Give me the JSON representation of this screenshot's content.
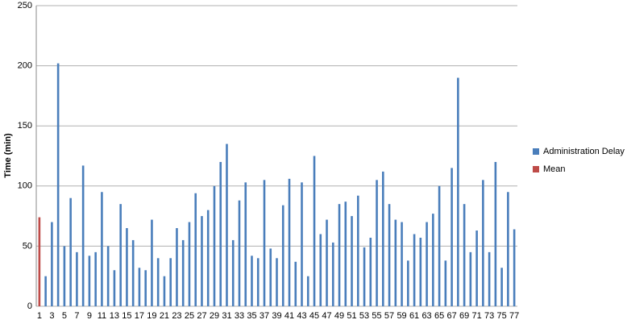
{
  "chart_data": {
    "type": "bar",
    "y_label": "Time (min)",
    "categories": [
      "1",
      null,
      "3",
      null,
      "5",
      null,
      "7",
      null,
      "9",
      null,
      "11",
      null,
      "13",
      null,
      "15",
      null,
      "17",
      null,
      "19",
      null,
      "21",
      null,
      "23",
      null,
      "25",
      null,
      "27",
      null,
      "29",
      null,
      "31",
      null,
      "33",
      null,
      "35",
      null,
      "37",
      null,
      "39",
      null,
      "41",
      null,
      "43",
      null,
      "45",
      null,
      "47",
      null,
      "49",
      null,
      "51",
      null,
      "53",
      null,
      "55",
      null,
      "57",
      null,
      "59",
      null,
      "61",
      null,
      "63",
      null,
      "65",
      null,
      "67",
      null,
      "69",
      null,
      "71",
      null,
      "73",
      null,
      "75",
      null,
      "77"
    ],
    "series": [
      {
        "name": "Administration Delay",
        "color": "#4a7ebb",
        "values": [
          null,
          25,
          70,
          202,
          50,
          90,
          45,
          117,
          42,
          45,
          95,
          50,
          30,
          85,
          65,
          55,
          32,
          30,
          72,
          40,
          25,
          40,
          65,
          55,
          70,
          94,
          75,
          80,
          100,
          120,
          135,
          55,
          88,
          103,
          42,
          40,
          105,
          48,
          40,
          84,
          106,
          37,
          103,
          25,
          125,
          60,
          72,
          53,
          85,
          87,
          75,
          92,
          49,
          57,
          105,
          112,
          85,
          72,
          70,
          38,
          60,
          57,
          70,
          77,
          100,
          38,
          115,
          190,
          85,
          45,
          63,
          105,
          45,
          120,
          32,
          95,
          64
        ]
      },
      {
        "name": "Mean",
        "color": "#be4b48",
        "values": [
          74,
          null,
          null,
          null,
          null,
          null,
          null,
          null,
          null,
          null,
          null,
          null,
          null,
          null,
          null,
          null,
          null,
          null,
          null,
          null,
          null,
          null,
          null,
          null,
          null,
          null,
          null,
          null,
          null,
          null,
          null,
          null,
          null,
          null,
          null,
          null,
          null,
          null,
          null,
          null,
          null,
          null,
          null,
          null,
          null,
          null,
          null,
          null,
          null,
          null,
          null,
          null,
          null,
          null,
          null,
          null,
          null,
          null,
          null,
          null,
          null,
          null,
          null,
          null,
          null,
          null,
          null,
          null,
          null,
          null,
          null,
          null,
          null,
          null,
          null,
          null,
          null
        ]
      }
    ],
    "ylim": [
      0,
      250
    ],
    "yticks": [
      0,
      50,
      100,
      150,
      200,
      250
    ],
    "grid": true,
    "legend": "right"
  }
}
